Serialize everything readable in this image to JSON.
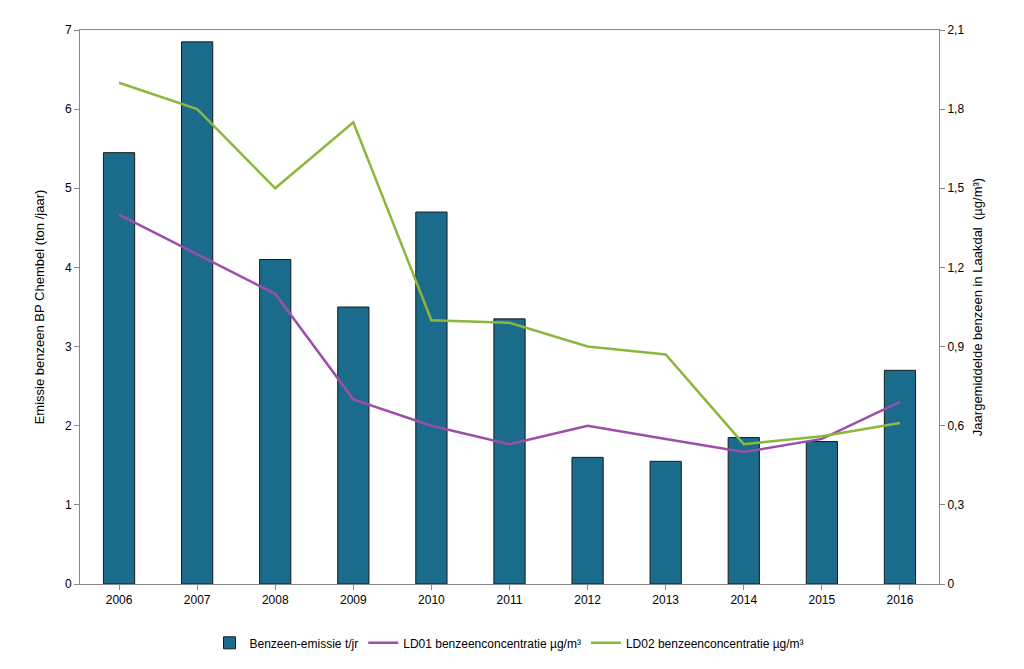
{
  "chart_data": {
    "type": "bar",
    "categories": [
      "2006",
      "2007",
      "2008",
      "2009",
      "2010",
      "2011",
      "2012",
      "2013",
      "2014",
      "2015",
      "2016"
    ],
    "y_label": "Emissie benzeen BP Chembel (ton /jaar)",
    "y2_label": "Jaargemiddelde benzeen in Laakdal  (µg/m³)",
    "ylim": [
      0,
      7
    ],
    "yticks": [
      0,
      1,
      2,
      3,
      4,
      5,
      6,
      7
    ],
    "y2lim": [
      0,
      2.1
    ],
    "y2ticks": [
      0,
      {
        "value": 0.3,
        "label": "0,3"
      },
      {
        "value": 0.6,
        "label": "0,6"
      },
      {
        "value": 0.9,
        "label": "0,9"
      },
      {
        "value": 1.2,
        "label": "1,2"
      },
      {
        "value": 1.5,
        "label": "1,5"
      },
      {
        "value": 1.8,
        "label": "1,8"
      },
      {
        "value": 2.1,
        "label": "2,1"
      }
    ],
    "grid": false,
    "legend": "bottom",
    "series": [
      {
        "name": "Benzeen-emissie t/jr",
        "type": "bar",
        "color": "#1b6c8c",
        "values": [
          5.45,
          6.85,
          4.1,
          3.5,
          4.7,
          3.35,
          1.6,
          1.55,
          1.85,
          1.8,
          2.7
        ]
      },
      {
        "name": "LD01 benzeenconcentratie µg/m³",
        "type": "line",
        "axis": "y2",
        "color": "#9b4fa8",
        "values": [
          1.4,
          1.25,
          1.1,
          0.7,
          0.6,
          0.53,
          0.6,
          0.55,
          0.5,
          0.55,
          0.69
        ]
      },
      {
        "name": "LD02 benzeenconcentratie µg/m³",
        "type": "line",
        "axis": "y2",
        "color": "#8db63c",
        "values": [
          1.9,
          1.8,
          1.5,
          1.75,
          1.0,
          0.99,
          0.9,
          0.87,
          0.53,
          0.56,
          0.61
        ]
      }
    ]
  }
}
